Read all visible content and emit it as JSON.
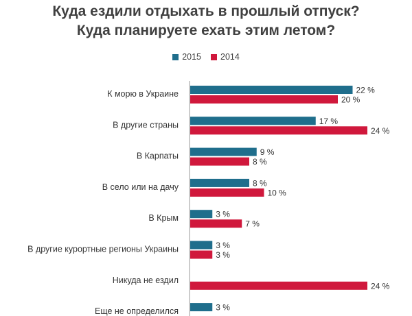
{
  "chart_data": {
    "type": "bar",
    "orientation": "horizontal",
    "title": "Куда ездили отдыхать в прошлый отпуск?",
    "subtitle": "Куда планируете ехать этим летом?",
    "legend_placement": "top-center",
    "grid": false,
    "categories": [
      "К морю в Украине",
      "В другие страны",
      "В Карпаты",
      "В село или на дачу",
      "В Крым",
      "В другие курортные регионы Украины",
      "Никуда не ездил",
      "Еще не определился"
    ],
    "series": [
      {
        "name": "2015",
        "color": "#1f6e8c",
        "values": [
          22,
          17,
          9,
          8,
          3,
          3,
          null,
          3
        ],
        "labels": [
          "22 %",
          "17 %",
          "9 %",
          "8 %",
          "3 %",
          "3 %",
          "",
          "3 %"
        ]
      },
      {
        "name": "2014",
        "color": "#d0183c",
        "values": [
          20,
          24,
          8,
          10,
          7,
          3,
          24,
          null
        ],
        "labels": [
          "20 %",
          "24 %",
          "8 %",
          "10 %",
          "7 %",
          "3 %",
          "24 %",
          ""
        ]
      }
    ],
    "xlim": [
      0,
      24
    ]
  }
}
